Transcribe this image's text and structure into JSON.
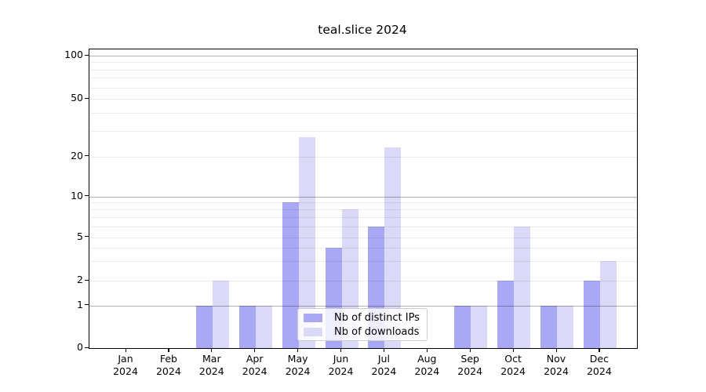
{
  "chart_data": {
    "type": "bar",
    "title": "teal.slice 2024",
    "categories": [
      "Jan 2024",
      "Feb 2024",
      "Mar 2024",
      "Apr 2024",
      "May 2024",
      "Jun 2024",
      "Jul 2024",
      "Aug 2024",
      "Sep 2024",
      "Oct 2024",
      "Nov 2024",
      "Dec 2024"
    ],
    "x_axis": {
      "tick_months": [
        "Jan",
        "Feb",
        "Mar",
        "Apr",
        "May",
        "Jun",
        "Jul",
        "Aug",
        "Sep",
        "Oct",
        "Nov",
        "Dec"
      ],
      "tick_year": "2024"
    },
    "y_axis": {
      "scale": "symlog",
      "tick_labels": [
        "0",
        "1",
        "2",
        "5",
        "10",
        "20",
        "50",
        "100"
      ],
      "tick_values": [
        0,
        1,
        2,
        5,
        10,
        20,
        50,
        100
      ],
      "major_grid_values": [
        1,
        10,
        100
      ],
      "light_grid_values": [
        2,
        5,
        20,
        50
      ],
      "minor_grid_values": [
        3,
        4,
        6,
        7,
        8,
        9,
        30,
        40,
        60,
        70,
        80,
        90
      ],
      "range": [
        0,
        110
      ]
    },
    "series": [
      {
        "name": "Nb of distinct IPs",
        "key": "ips",
        "color": "#a8a8f4",
        "values": [
          null,
          null,
          1,
          1,
          9,
          4,
          6,
          null,
          1,
          2,
          1,
          2
        ]
      },
      {
        "name": "Nb of downloads",
        "key": "downloads",
        "color": "#dadaf8",
        "values": [
          null,
          null,
          2,
          1,
          27,
          8,
          23,
          null,
          1,
          6,
          1,
          3
        ]
      }
    ],
    "legend": {
      "location": "lower center inside plot",
      "entries": [
        "Nb of distinct IPs",
        "Nb of downloads"
      ]
    },
    "grid": "horizontal major + log minor lines",
    "colors": {
      "background": "#ffffff",
      "spine": "#000000",
      "major_grid": "#b3b3b3",
      "minor_grid": "#ececec"
    }
  }
}
